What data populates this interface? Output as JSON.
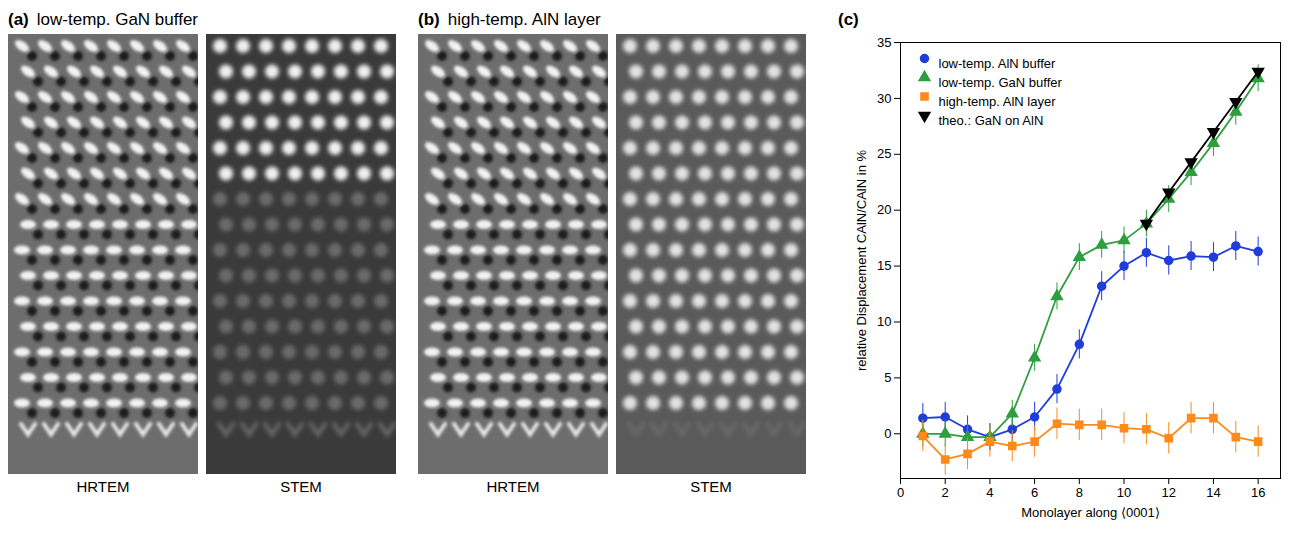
{
  "image_panels": [
    {
      "letter": "(a)",
      "title": "low-temp. GaN buffer",
      "labels": [
        "HRTEM",
        "STEM"
      ]
    },
    {
      "letter": "(b)",
      "title": "high-temp. AlN layer",
      "labels": [
        "HRTEM",
        "STEM"
      ]
    }
  ],
  "chart_data": {
    "type": "line",
    "letter": "(c)",
    "x_label": "Monolayer along ⟨0001⟩",
    "y_label": "relative Displacement CAlN/CAlN in %",
    "x": [
      1,
      2,
      3,
      4,
      5,
      6,
      7,
      8,
      9,
      10,
      11,
      12,
      13,
      14,
      15,
      16
    ],
    "series": [
      {
        "name": "low-temp. AlN buffer",
        "color": "#1f3ddb",
        "marker": "circle",
        "values": [
          1.4,
          1.5,
          0.4,
          -0.3,
          0.4,
          1.5,
          4.0,
          8.0,
          13.2,
          15.0,
          16.2,
          15.5,
          15.9,
          15.8,
          16.8,
          16.3
        ],
        "errors": [
          1.3,
          1.3,
          1.2,
          1.2,
          1.2,
          1.3,
          1.3,
          1.3,
          1.3,
          1.3,
          1.3,
          1.3,
          1.3,
          1.3,
          1.3,
          1.3
        ]
      },
      {
        "name": "low-temp. GaN buffer",
        "color": "#2e9e3e",
        "marker": "triangle",
        "values": [
          0.0,
          0.0,
          -0.3,
          -0.3,
          1.8,
          6.8,
          12.3,
          15.8,
          16.9,
          17.3,
          18.8,
          21.0,
          23.4,
          26.0,
          28.8,
          31.8
        ],
        "errors": [
          1.2,
          1.2,
          1.2,
          1.2,
          1.2,
          1.2,
          1.2,
          1.2,
          1.2,
          1.2,
          1.2,
          1.2,
          1.2,
          1.2,
          1.2,
          1.2
        ]
      },
      {
        "name": "high-temp. AlN layer",
        "color": "#ff8a1c",
        "marker": "square",
        "values": [
          -0.2,
          -2.3,
          -1.8,
          -0.7,
          -1.1,
          -0.7,
          0.9,
          0.8,
          0.8,
          0.5,
          0.4,
          -0.4,
          1.4,
          1.4,
          -0.3,
          -0.7
        ],
        "errors": [
          1.4,
          1.4,
          1.4,
          1.4,
          1.4,
          1.4,
          1.4,
          1.4,
          1.4,
          1.4,
          1.4,
          1.4,
          1.4,
          1.4,
          1.4,
          1.4
        ]
      },
      {
        "name": "theo.: GaN on AlN",
        "color": "#000000",
        "marker": "triangle-down",
        "values": [
          null,
          null,
          null,
          null,
          null,
          null,
          null,
          null,
          null,
          null,
          18.8,
          21.6,
          24.3,
          27.0,
          29.7,
          32.4
        ]
      }
    ],
    "xlim": [
      0,
      17
    ],
    "xticks": [
      0,
      2,
      4,
      6,
      8,
      10,
      12,
      14,
      16
    ],
    "ylim": [
      -4,
      35
    ],
    "yticks": [
      0,
      5,
      10,
      15,
      20,
      25,
      30,
      35
    ],
    "grid": false,
    "legend": "top-left"
  }
}
